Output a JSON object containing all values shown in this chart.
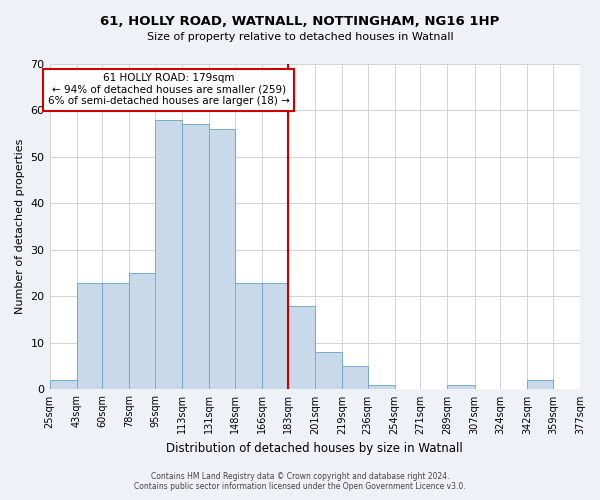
{
  "title": "61, HOLLY ROAD, WATNALL, NOTTINGHAM, NG16 1HP",
  "subtitle": "Size of property relative to detached houses in Watnall",
  "xlabel": "Distribution of detached houses by size in Watnall",
  "ylabel": "Number of detached properties",
  "bar_color": "#c8daea",
  "bar_edge_color": "#7aaac8",
  "bin_edges": [
    25,
    43,
    60,
    78,
    95,
    113,
    131,
    148,
    166,
    183,
    201,
    219,
    236,
    254,
    271,
    289,
    307,
    324,
    342,
    359,
    377
  ],
  "bin_labels": [
    "25sqm",
    "43sqm",
    "60sqm",
    "78sqm",
    "95sqm",
    "113sqm",
    "131sqm",
    "148sqm",
    "166sqm",
    "183sqm",
    "201sqm",
    "219sqm",
    "236sqm",
    "254sqm",
    "271sqm",
    "289sqm",
    "307sqm",
    "324sqm",
    "342sqm",
    "359sqm",
    "377sqm"
  ],
  "counts": [
    2,
    23,
    23,
    25,
    58,
    57,
    56,
    23,
    23,
    18,
    8,
    5,
    1,
    0,
    0,
    1,
    0,
    0,
    2,
    0
  ],
  "property_line_x": 183,
  "ylim": [
    0,
    70
  ],
  "yticks": [
    0,
    10,
    20,
    30,
    40,
    50,
    60,
    70
  ],
  "annotation_title": "61 HOLLY ROAD: 179sqm",
  "annotation_line1": "← 94% of detached houses are smaller (259)",
  "annotation_line2": "6% of semi-detached houses are larger (18) →",
  "footer1": "Contains HM Land Registry data © Crown copyright and database right 2024.",
  "footer2": "Contains public sector information licensed under the Open Government Licence v3.0.",
  "background_color": "#eef2f7",
  "plot_bg_color": "#ffffff",
  "grid_color": "#cccccc",
  "line_color": "#cc0000"
}
